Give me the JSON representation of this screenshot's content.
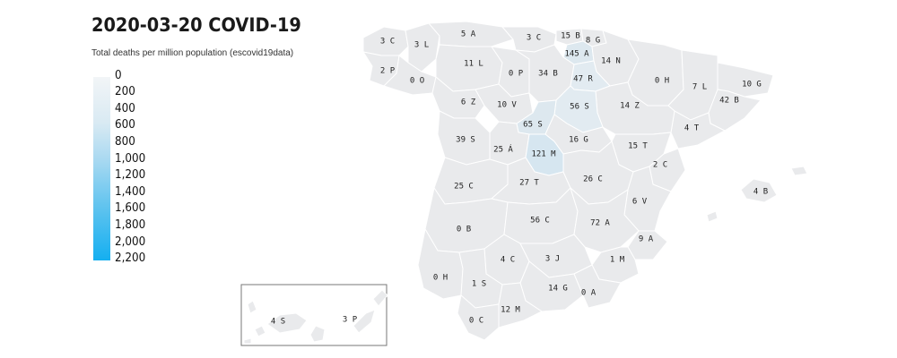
{
  "title": "2020-03-20 COVID-19",
  "subtitle": "Total deaths per million population (escovid19data)",
  "legend": {
    "labels": [
      "0",
      "200",
      "400",
      "600",
      "800",
      "1,000",
      "1,200",
      "1,400",
      "1,600",
      "1,800",
      "2,000",
      "2,200"
    ],
    "color_min": "#f2f5f7",
    "color_max": "#14aff0"
  },
  "provinces": [
    {
      "id": "coruna",
      "label": "3 C"
    },
    {
      "id": "lugo",
      "label": "3 L"
    },
    {
      "id": "asturias",
      "label": "5 A"
    },
    {
      "id": "cantabria",
      "label": "3 C"
    },
    {
      "id": "bizkaia",
      "label": "15 B"
    },
    {
      "id": "gipuzkoa",
      "label": "8 G"
    },
    {
      "id": "alava",
      "label": "145 A"
    },
    {
      "id": "navarra",
      "label": "14 N"
    },
    {
      "id": "pontevedra",
      "label": "2 P"
    },
    {
      "id": "ourense",
      "label": "0 O"
    },
    {
      "id": "leon",
      "label": "11 L"
    },
    {
      "id": "palencia",
      "label": "0 P"
    },
    {
      "id": "burgos",
      "label": "34 B"
    },
    {
      "id": "larioja",
      "label": "47 R"
    },
    {
      "id": "huesca",
      "label": "0 H"
    },
    {
      "id": "lleida",
      "label": "7 L"
    },
    {
      "id": "girona",
      "label": "10 G"
    },
    {
      "id": "barcelona",
      "label": "42 B"
    },
    {
      "id": "zamora",
      "label": "6 Z"
    },
    {
      "id": "valladolid",
      "label": "10 V"
    },
    {
      "id": "soria",
      "label": "56 S"
    },
    {
      "id": "zaragoza",
      "label": "14 Z"
    },
    {
      "id": "tarragona",
      "label": "4 T"
    },
    {
      "id": "segovia",
      "label": "65 S"
    },
    {
      "id": "salamanca",
      "label": "39 S"
    },
    {
      "id": "guadalajara",
      "label": "16 G"
    },
    {
      "id": "avila",
      "label": "25 Á"
    },
    {
      "id": "madrid",
      "label": "121 M"
    },
    {
      "id": "teruel",
      "label": "15 T"
    },
    {
      "id": "castellon",
      "label": "2 C"
    },
    {
      "id": "caceres",
      "label": "25 C"
    },
    {
      "id": "toledo",
      "label": "27 T"
    },
    {
      "id": "cuenca",
      "label": "26 C"
    },
    {
      "id": "baleares",
      "label": "4 B"
    },
    {
      "id": "valencia",
      "label": "6 V"
    },
    {
      "id": "badajoz",
      "label": "0 B"
    },
    {
      "id": "ciudadreal",
      "label": "56 C"
    },
    {
      "id": "albacete",
      "label": "72 A"
    },
    {
      "id": "alicante",
      "label": "9 A"
    },
    {
      "id": "cordoba",
      "label": "4 C"
    },
    {
      "id": "jaen",
      "label": "3 J"
    },
    {
      "id": "murcia",
      "label": "1 M"
    },
    {
      "id": "huelva",
      "label": "0 H"
    },
    {
      "id": "sevilla",
      "label": "1 S"
    },
    {
      "id": "granada",
      "label": "14 G"
    },
    {
      "id": "almeria",
      "label": "0 A"
    },
    {
      "id": "cadiz",
      "label": "0 C"
    },
    {
      "id": "malaga",
      "label": "12 M"
    },
    {
      "id": "santacruz",
      "label": "4 S"
    },
    {
      "id": "laspalmas",
      "label": "3 P"
    }
  ]
}
